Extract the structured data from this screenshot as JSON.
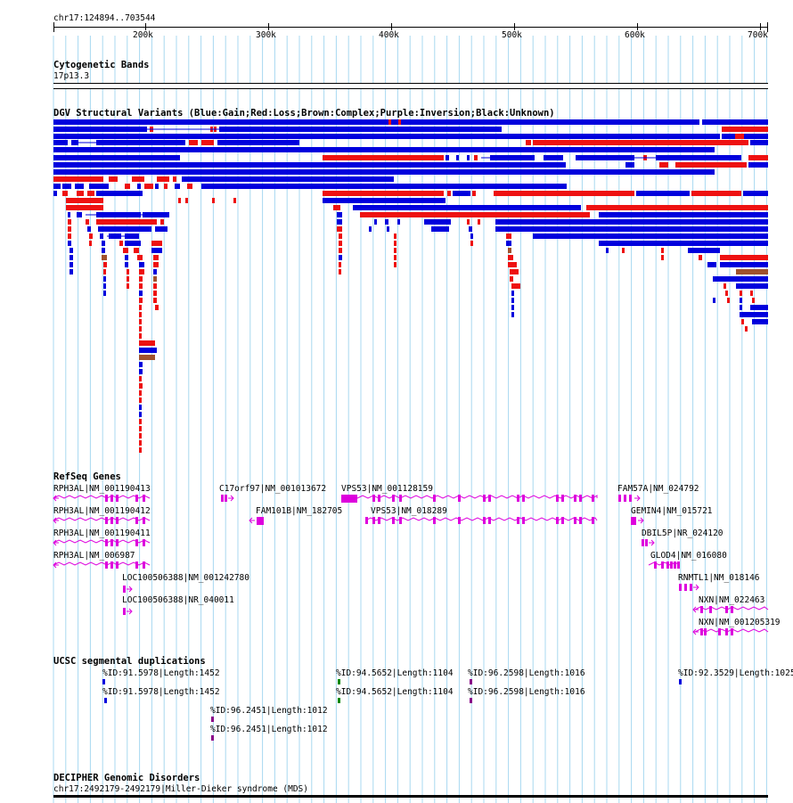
{
  "ruler": {
    "region": "chr17:124894..703544",
    "ticks": [
      "200k",
      "300k",
      "400k",
      "500k",
      "600k",
      "700k"
    ]
  },
  "cytobands": {
    "title": "Cytogenetic Bands",
    "band": "17p13.3"
  },
  "dgv": {
    "title": "DGV Structural Variants (Blue:Gain;Red:Loss;Brown:Complex;Purple:Inversion;Black:Unknown)",
    "colors": {
      "gain": "#0000dd",
      "loss": "#ee1111",
      "complex": "#a0522d"
    }
  },
  "refseq": {
    "title": "RefSeq Genes",
    "color": "#dd00dd",
    "genes": [
      "RPH3AL|NM_001190413",
      "RPH3AL|NM_001190412",
      "RPH3AL|NM_001190411",
      "RPH3AL|NM_006987",
      "LOC100506388|NM_001242780",
      "LOC100506388|NR_040011",
      "C17orf97|NM_001013672",
      "FAM101B|NM_182705",
      "VPS53|NM_001128159",
      "VPS53|NM_018289",
      "FAM57A|NM_024792",
      "GEMIN4|NM_015721",
      "DBIL5P|NR_024120",
      "GLOD4|NM_016080",
      "RNMTL1|NM_018146",
      "NXN|NM_022463",
      "NXN|NM_001205319"
    ]
  },
  "segdup": {
    "title": "UCSC segmental duplications",
    "items": [
      "%ID:91.5978|Length:1452",
      "%ID:91.5978|Length:1452",
      "%ID:96.2451|Length:1012",
      "%ID:96.2451|Length:1012",
      "%ID:94.5652|Length:1104",
      "%ID:94.5652|Length:1104",
      "%ID:96.2598|Length:1016",
      "%ID:96.2598|Length:1016",
      "%ID:92.3529|Length:1025"
    ]
  },
  "decipher": {
    "title": "DECIPHER Genomic Disorders",
    "item": "chr17:2492179-2492179|Miller-Dieker syndrome (MDS)"
  }
}
